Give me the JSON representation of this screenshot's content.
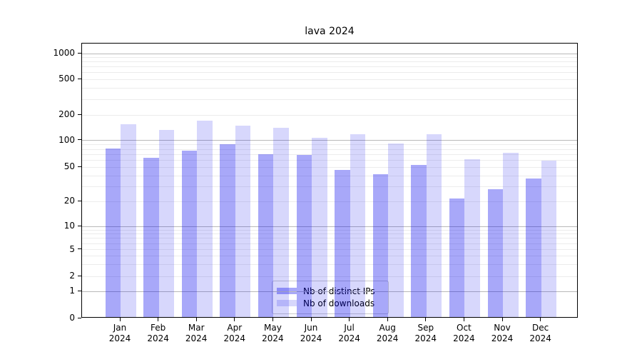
{
  "title": "lava 2024",
  "legend": {
    "items": [
      {
        "label": "Nb of distinct IPs",
        "color": "rgba(0,0,238,0.34)"
      },
      {
        "label": "Nb of downloads",
        "color": "rgba(0,0,238,0.155)"
      }
    ]
  },
  "colors": {
    "distinct_ips_bar": "rgba(0,0,238,0.34)",
    "downloads_bar": "rgba(0,0,238,0.155)",
    "major_gridline": "#b9b9b9",
    "minor_gridline": "#ececec",
    "axis": "#000000"
  },
  "chart_data": {
    "type": "bar",
    "title": "lava 2024",
    "categories": [
      "Jan 2024",
      "Feb 2024",
      "Mar 2024",
      "Apr 2024",
      "May 2024",
      "Jun 2024",
      "Jul 2024",
      "Aug 2024",
      "Sep 2024",
      "Oct 2024",
      "Nov 2024",
      "Dec 2024"
    ],
    "series": [
      {
        "name": "Nb of distinct IPs",
        "values": [
          78,
          62,
          74,
          88,
          68,
          66,
          45,
          40,
          51,
          21,
          27,
          36
        ]
      },
      {
        "name": "Nb of downloads",
        "values": [
          150,
          130,
          165,
          145,
          138,
          103,
          115,
          90,
          114,
          60,
          71,
          57
        ]
      }
    ],
    "xlabel": "",
    "ylabel": "",
    "yscale": "symlog",
    "yticks": [
      0,
      1,
      2,
      5,
      10,
      20,
      50,
      100,
      200,
      500,
      1000
    ],
    "ylim": [
      0,
      1300
    ],
    "grid": true,
    "legend_position": "lower center"
  }
}
